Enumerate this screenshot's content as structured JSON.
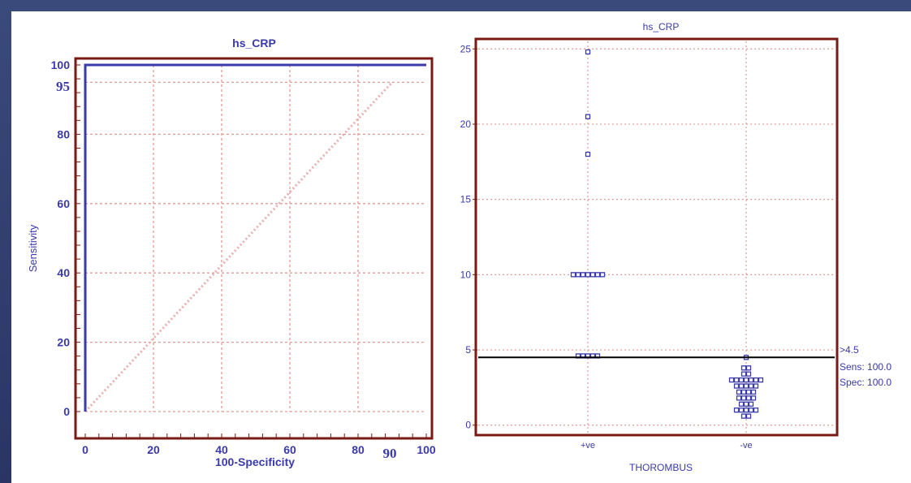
{
  "chart_data": [
    {
      "type": "line",
      "title": "hs_CRP",
      "xlabel": "100-Specificity",
      "ylabel": "Sensitivity",
      "xlim": [
        0,
        100
      ],
      "ylim": [
        0,
        100
      ],
      "xticks": [
        "0",
        "20",
        "40",
        "60",
        "80",
        "100"
      ],
      "yticks": [
        "0",
        "20",
        "40",
        "60",
        "80",
        "100"
      ],
      "grid": true,
      "series": [
        {
          "values": [
            [
              0,
              0
            ],
            [
              0,
              100
            ],
            [
              100,
              100
            ]
          ],
          "color": "#3a3aa8"
        },
        {
          "values": [
            [
              0,
              0
            ],
            [
              90,
              95
            ]
          ],
          "color": "#e8b0b0"
        }
      ],
      "annotations": [
        {
          "text": "95",
          "x": 0,
          "y": 95
        },
        {
          "text": "90",
          "x": 90,
          "y": 0
        }
      ]
    },
    {
      "type": "scatter",
      "title": "hs_CRP",
      "xlabel": "THOROMBUS",
      "categories": [
        "+ve",
        "-ve"
      ],
      "ylim": [
        -0.5,
        25.5
      ],
      "yticks": [
        "0",
        "5",
        "10",
        "15",
        "20",
        "25"
      ],
      "grid": true,
      "cutoff": 4.5,
      "cutoff_labels": [
        ">4.5",
        "Sens: 100.0",
        "Spec: 100.0"
      ],
      "marker_color": "#3a3aa8",
      "series": [
        {
          "category": "+ve",
          "values": [
            24.8,
            20.5,
            18,
            10,
            10,
            10,
            10,
            10,
            10,
            10,
            4.6,
            4.6,
            4.6,
            4.6,
            4.6
          ]
        },
        {
          "category": "-ve",
          "values": [
            4.5,
            3.8,
            3.8,
            3.4,
            3.4,
            3.0,
            3.0,
            3.0,
            3.0,
            3.0,
            3.0,
            3.0,
            2.6,
            2.6,
            2.6,
            2.6,
            2.6,
            2.2,
            2.2,
            2.2,
            2.2,
            1.8,
            1.8,
            1.8,
            1.8,
            1.4,
            1.4,
            1.4,
            1.0,
            1.0,
            1.0,
            1.0,
            1.0,
            0.6,
            0.6
          ]
        }
      ]
    }
  ]
}
